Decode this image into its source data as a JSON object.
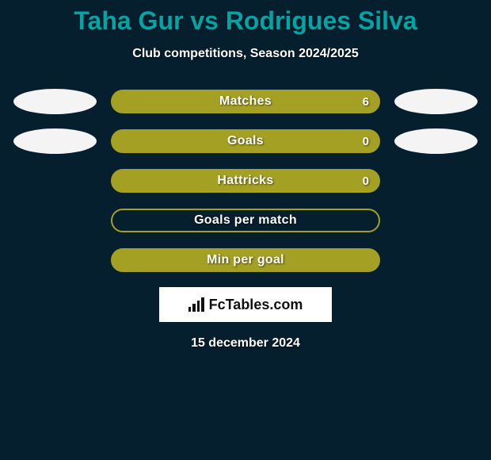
{
  "header": {
    "title": "Taha Gur vs Rodrigues Silva",
    "subtitle": "Club competitions, Season 2024/2025"
  },
  "stats": [
    {
      "label": "Matches",
      "value": "6",
      "show_value": true,
      "filled": true,
      "left_ellipse": true,
      "right_ellipse": true
    },
    {
      "label": "Goals",
      "value": "0",
      "show_value": true,
      "filled": true,
      "left_ellipse": true,
      "right_ellipse": true
    },
    {
      "label": "Hattricks",
      "value": "0",
      "show_value": true,
      "filled": true,
      "left_ellipse": false,
      "right_ellipse": false
    },
    {
      "label": "Goals per match",
      "value": "",
      "show_value": false,
      "filled": false,
      "left_ellipse": false,
      "right_ellipse": false
    },
    {
      "label": "Min per goal",
      "value": "",
      "show_value": false,
      "filled": true,
      "left_ellipse": false,
      "right_ellipse": false
    }
  ],
  "brand": {
    "text": "FcTables.com"
  },
  "date": "15 december 2024",
  "theme": {
    "background": "#061f2f",
    "accent_title": "#00a5a5",
    "bar_color": "#a4a024",
    "ellipse_color": "#f4f4f4",
    "text_color": "#ffffff"
  }
}
